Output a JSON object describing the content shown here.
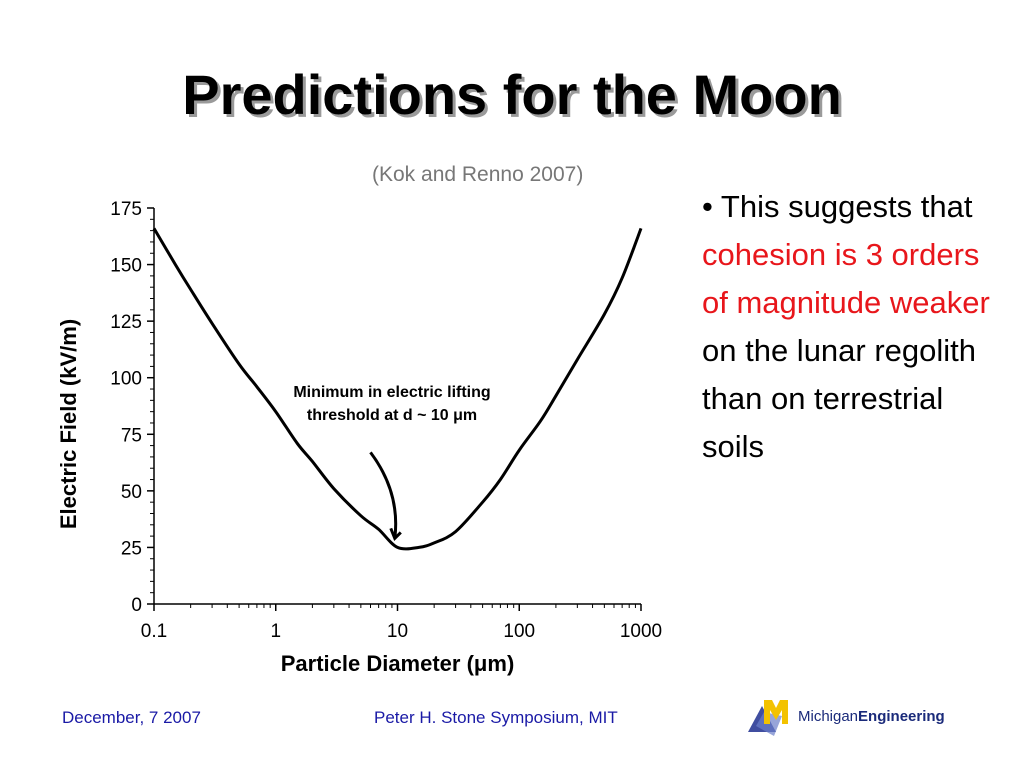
{
  "slide": {
    "title": "Predictions for the Moon",
    "citation": "(Kok and Renno 2007)",
    "bullet": {
      "marker": "•",
      "part1": "This suggests that",
      "highlight": "cohesion is 3 orders of magnitude weaker",
      "part2": "on the lunar regolith than on terrestrial soils"
    },
    "footer": {
      "date": "December, 7 2007",
      "event": "Peter H. Stone Symposium, MIT",
      "logo_word1": "Michigan",
      "logo_word2": "Engineering"
    },
    "colors": {
      "highlight": "#e8161b",
      "footer_text": "#1a1aa6",
      "logo_yellow": "#f3c200",
      "logo_blue": "#1f2f8f"
    }
  },
  "chart_data": {
    "type": "line",
    "x_scale": "log",
    "xlabel": "Particle Diameter (μm)",
    "ylabel": "Electric Field (kV/m)",
    "xlim": [
      0.1,
      1000
    ],
    "ylim": [
      0,
      175
    ],
    "xticks": [
      0.1,
      1,
      10,
      100,
      1000
    ],
    "xtick_labels": [
      "0.1",
      "1",
      "10",
      "100",
      "1000"
    ],
    "yticks": [
      0,
      25,
      50,
      75,
      100,
      125,
      150,
      175
    ],
    "ytick_labels": [
      "0",
      "25",
      "50",
      "75",
      "100",
      "125",
      "150",
      "175"
    ],
    "grid": false,
    "series": [
      {
        "x": [
          0.1,
          0.15,
          0.2,
          0.3,
          0.5,
          0.7,
          1,
          1.5,
          2,
          3,
          5,
          7,
          10,
          15,
          20,
          30,
          50,
          70,
          100,
          150,
          200,
          300,
          500,
          700,
          1000
        ],
        "y": [
          166,
          150,
          139,
          124,
          106,
          96,
          85,
          71,
          63,
          51,
          39,
          33,
          25,
          25,
          27,
          32,
          45,
          55,
          68,
          81,
          92,
          108,
          128,
          144,
          166
        ]
      }
    ],
    "annotation": {
      "text_line1": "Minimum in electric lifting",
      "text_line2": "threshold at d ~ 10 μm",
      "arrow_from": [
        6,
        67
      ],
      "arrow_to": [
        9.5,
        29
      ]
    }
  }
}
